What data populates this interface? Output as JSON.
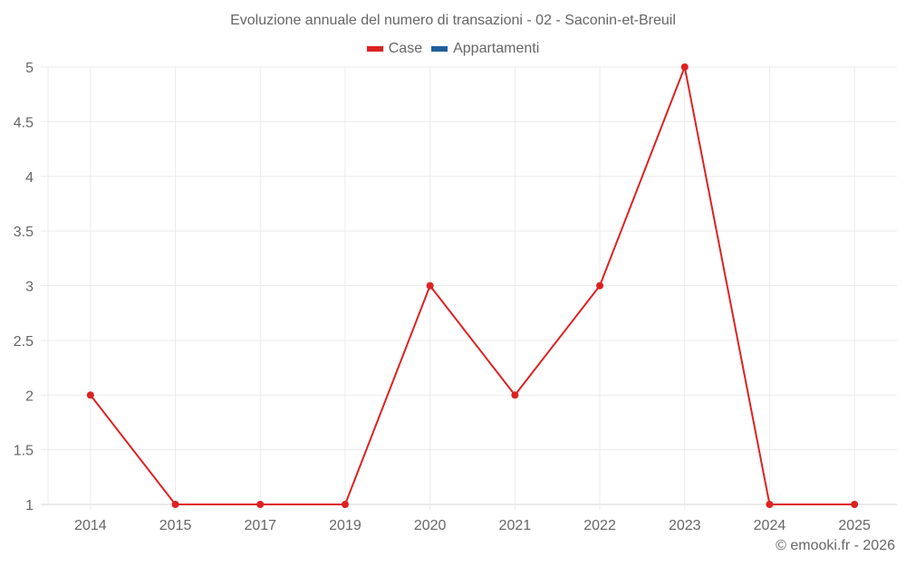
{
  "title": "Evoluzione annuale del numero di transazioni - 02 - Saconin-et-Breuil",
  "legend": [
    {
      "label": "Case",
      "color": "#dd2222"
    },
    {
      "label": "Appartamenti",
      "color": "#1f5f9a"
    }
  ],
  "credit": "© emooki.fr - 2026",
  "chart_data": {
    "type": "line",
    "title": "Evoluzione annuale del numero di transazioni - 02 - Saconin-et-Breuil",
    "xlabel": "",
    "ylabel": "",
    "categories": [
      "2014",
      "2015",
      "2017",
      "2019",
      "2020",
      "2021",
      "2022",
      "2023",
      "2024",
      "2025"
    ],
    "series": [
      {
        "name": "Case",
        "color": "#dd2222",
        "values": [
          2,
          1,
          1,
          1,
          3,
          2,
          3,
          5,
          1,
          1
        ]
      },
      {
        "name": "Appartamenti",
        "color": "#1f5f9a",
        "values": []
      }
    ],
    "yticks": [
      "1",
      "1.5",
      "2",
      "2.5",
      "3",
      "3.5",
      "4",
      "4.5",
      "5"
    ],
    "ylim": [
      1,
      5
    ],
    "grid": true,
    "legend_position": "top-center"
  }
}
